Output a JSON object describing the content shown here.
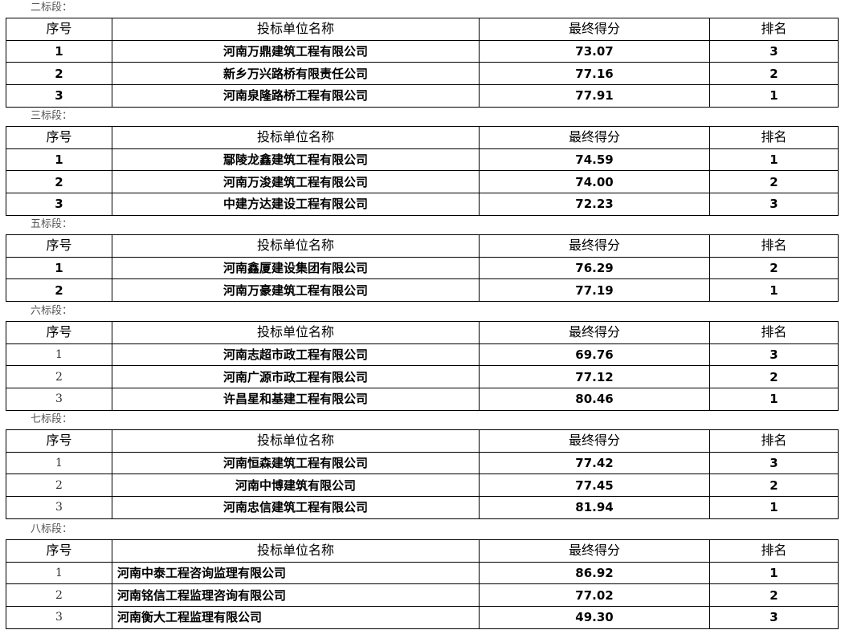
{
  "headers": {
    "seq": "序号",
    "name": "投标单位名称",
    "score": "最终得分",
    "rank": "排名"
  },
  "sections": [
    {
      "label": "二标段：",
      "rows": [
        {
          "seq": "1",
          "name": "河南万鼎建筑工程有限公司",
          "score": "73.07",
          "rank": "3"
        },
        {
          "seq": "2",
          "name": "新乡万兴路桥有限责任公司",
          "score": "77.16",
          "rank": "2"
        },
        {
          "seq": "3",
          "name": "河南泉隆路桥工程有限公司",
          "score": "77.91",
          "rank": "1"
        }
      ]
    },
    {
      "label": "三标段：",
      "rows": [
        {
          "seq": "1",
          "name": "鄢陵龙鑫建筑工程有限公司",
          "score": "74.59",
          "rank": "1"
        },
        {
          "seq": "2",
          "name": "河南万浚建筑工程有限公司",
          "score": "74.00",
          "rank": "2"
        },
        {
          "seq": "3",
          "name": "中建方达建设工程有限公司",
          "score": "72.23",
          "rank": "3"
        }
      ]
    },
    {
      "label": "五标段：",
      "rows": [
        {
          "seq": "1",
          "name": "河南鑫厦建设集团有限公司",
          "score": "76.29",
          "rank": "2"
        },
        {
          "seq": "2",
          "name": "河南万豪建筑工程有限公司",
          "score": "77.19",
          "rank": "1"
        }
      ]
    },
    {
      "label": "六标段：",
      "rows": [
        {
          "seq": "1",
          "name": "河南志超市政工程有限公司",
          "score": "69.76",
          "rank": "3"
        },
        {
          "seq": "2",
          "name": "河南广源市政工程有限公司",
          "score": "77.12",
          "rank": "2"
        },
        {
          "seq": "3",
          "name": "许昌星和基建工程有限公司",
          "score": "80.46",
          "rank": "1"
        }
      ]
    },
    {
      "label": "七标段：",
      "rows": [
        {
          "seq": "1",
          "name": "河南恒森建筑工程有限公司",
          "score": "77.42",
          "rank": "3"
        },
        {
          "seq": "2",
          "name": "河南中博建筑有限公司",
          "score": "77.45",
          "rank": "2"
        },
        {
          "seq": "3",
          "name": "河南忠信建筑工程有限公司",
          "score": "81.94",
          "rank": "1"
        }
      ]
    },
    {
      "label": "八标段：",
      "rows": [
        {
          "seq": "1",
          "name": "河南中泰工程咨询监理有限公司",
          "score": "86.92",
          "rank": "1"
        },
        {
          "seq": "2",
          "name": "河南铭信工程监理咨询有限公司",
          "score": "77.02",
          "rank": "2"
        },
        {
          "seq": "3",
          "name": "河南衡大工程监理有限公司",
          "score": "49.30",
          "rank": "3"
        }
      ]
    }
  ]
}
